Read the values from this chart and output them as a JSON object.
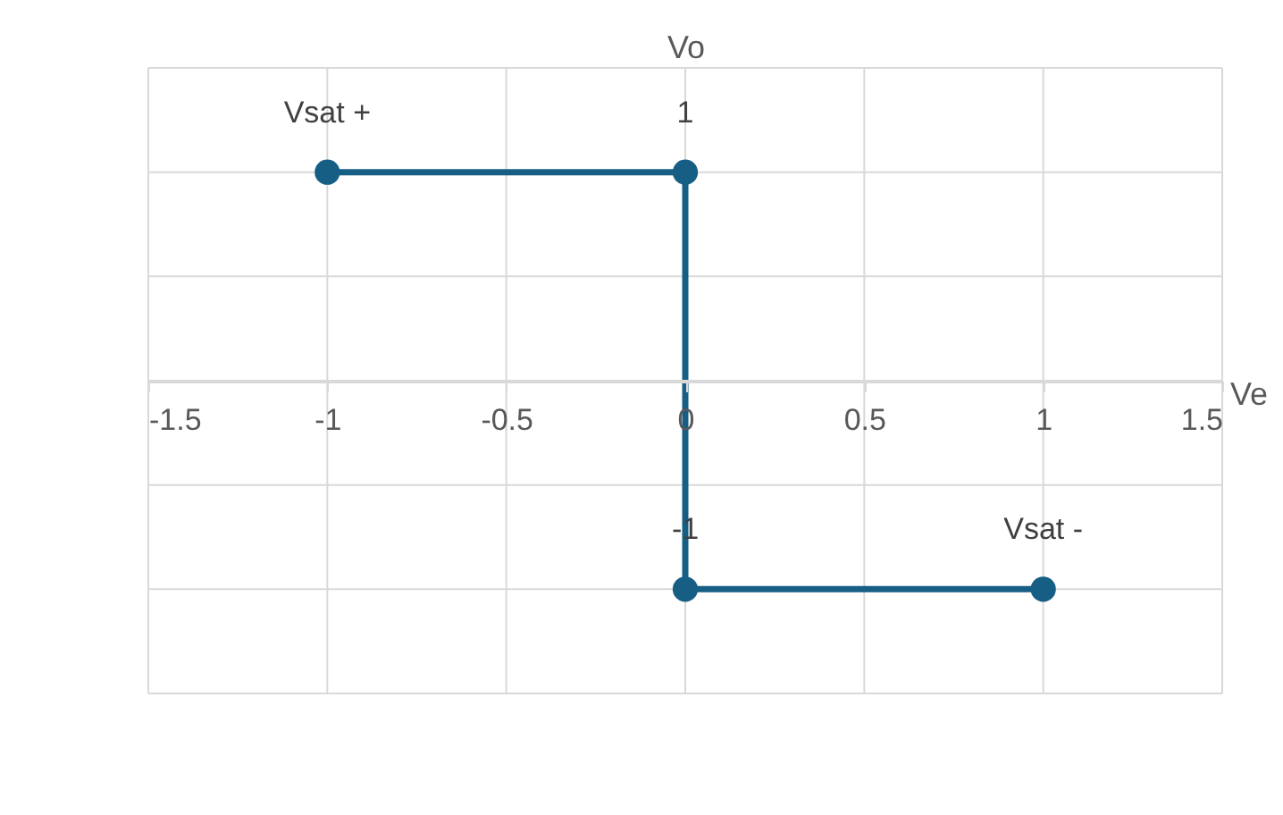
{
  "chart_data": {
    "type": "line",
    "xlabel": "Ve",
    "ylabel": "Vo",
    "x": [
      -1,
      0,
      0,
      1
    ],
    "series": [
      {
        "color": "#175e85",
        "values": [
          1,
          1,
          -1,
          -1
        ],
        "value_labels": [
          "Vsat +",
          "1",
          "-1",
          "Vsat -"
        ]
      }
    ],
    "xlim": [
      -1.5,
      1.5
    ],
    "xticks": [
      -1.5,
      -1,
      -0.5,
      0,
      0.5,
      1,
      1.5
    ],
    "ylim": [
      -1.5,
      1.5
    ],
    "yticks": [
      {
        "value": -1.5,
        "label": null
      },
      {
        "value": -1,
        "label": null
      },
      {
        "value": -0.5,
        "label": null
      },
      {
        "value": 0,
        "label": null
      },
      {
        "value": 0.5,
        "label": null
      },
      {
        "value": 1,
        "label": null
      },
      {
        "value": 1.5,
        "label": null
      }
    ],
    "tick_labels": "x",
    "grid": true,
    "marker": "circle",
    "line_style": "solid"
  }
}
